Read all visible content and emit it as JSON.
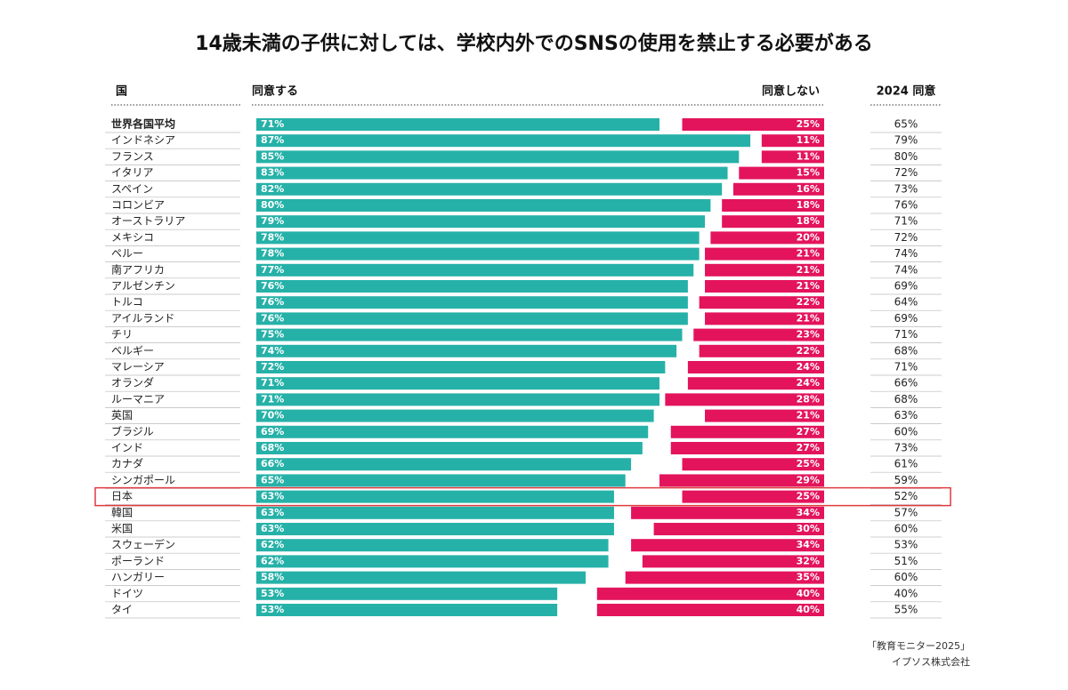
{
  "chart_data": {
    "type": "diverging-bar",
    "title": "14歳未満の子供に対しては、学校内外でのSNSの使用を禁止する必要がある",
    "category_header": "国",
    "categories": [
      "世界各国平均",
      "インドネシア",
      "フランス",
      "イタリア",
      "スペイン",
      "コロンビア",
      "オーストラリア",
      "メキシコ",
      "ペルー",
      "南アフリカ",
      "アルゼンチン",
      "トルコ",
      "アイルランド",
      "チリ",
      "ベルギー",
      "マレーシア",
      "オランダ",
      "ルーマニア",
      "英国",
      "ブラジル",
      "インド",
      "カナダ",
      "シンガポール",
      "日本",
      "韓国",
      "米国",
      "スウェーデン",
      "ポーランド",
      "ハンガリー",
      "ドイツ",
      "タイ"
    ],
    "xlim": [
      0,
      100
    ],
    "highlight": "日本",
    "series": [
      {
        "name": "同意する",
        "color": "#26b1a8",
        "values": [
          71,
          87,
          85,
          83,
          82,
          80,
          79,
          78,
          78,
          77,
          76,
          76,
          76,
          75,
          74,
          72,
          71,
          71,
          70,
          69,
          68,
          66,
          65,
          63,
          63,
          63,
          62,
          62,
          58,
          53,
          53
        ],
        "value_labels": [
          "71%",
          "87%",
          "85%",
          "83%",
          "82%",
          "80%",
          "79%",
          "78%",
          "78%",
          "77%",
          "76%",
          "76%",
          "76%",
          "75%",
          "74%",
          "72%",
          "71%",
          "71%",
          "70%",
          "69%",
          "68%",
          "66%",
          "65%",
          "63%",
          "63%",
          "63%",
          "62%",
          "62%",
          "58%",
          "53%",
          "53%"
        ]
      },
      {
        "name": "同意しない",
        "color": "#e3145c",
        "values": [
          25,
          11,
          11,
          15,
          16,
          18,
          18,
          20,
          21,
          21,
          21,
          22,
          21,
          23,
          22,
          24,
          24,
          28,
          21,
          27,
          27,
          25,
          29,
          25,
          34,
          30,
          34,
          32,
          35,
          40,
          40
        ],
        "value_labels": [
          "25%",
          "11%",
          "11%",
          "15%",
          "16%",
          "18%",
          "18%",
          "20%",
          "21%",
          "21%",
          "21%",
          "22%",
          "21%",
          "23%",
          "22%",
          "24%",
          "24%",
          "28%",
          "21%",
          "27%",
          "27%",
          "25%",
          "29%",
          "25%",
          "34%",
          "30%",
          "34%",
          "32%",
          "35%",
          "40%",
          "40%"
        ]
      },
      {
        "name": "2024 同意",
        "values": [
          65,
          79,
          80,
          72,
          73,
          76,
          71,
          72,
          74,
          74,
          69,
          64,
          69,
          71,
          68,
          71,
          66,
          68,
          63,
          60,
          73,
          61,
          59,
          52,
          57,
          60,
          53,
          51,
          60,
          40,
          55
        ],
        "value_labels": [
          "65%",
          "79%",
          "80%",
          "72%",
          "73%",
          "76%",
          "71%",
          "72%",
          "74%",
          "74%",
          "69%",
          "64%",
          "69%",
          "71%",
          "68%",
          "71%",
          "66%",
          "68%",
          "63%",
          "60%",
          "73%",
          "61%",
          "59%",
          "52%",
          "57%",
          "60%",
          "53%",
          "51%",
          "60%",
          "40%",
          "55%"
        ]
      }
    ],
    "source": [
      "「教育モニター2025」",
      "イプソス株式会社"
    ]
  }
}
